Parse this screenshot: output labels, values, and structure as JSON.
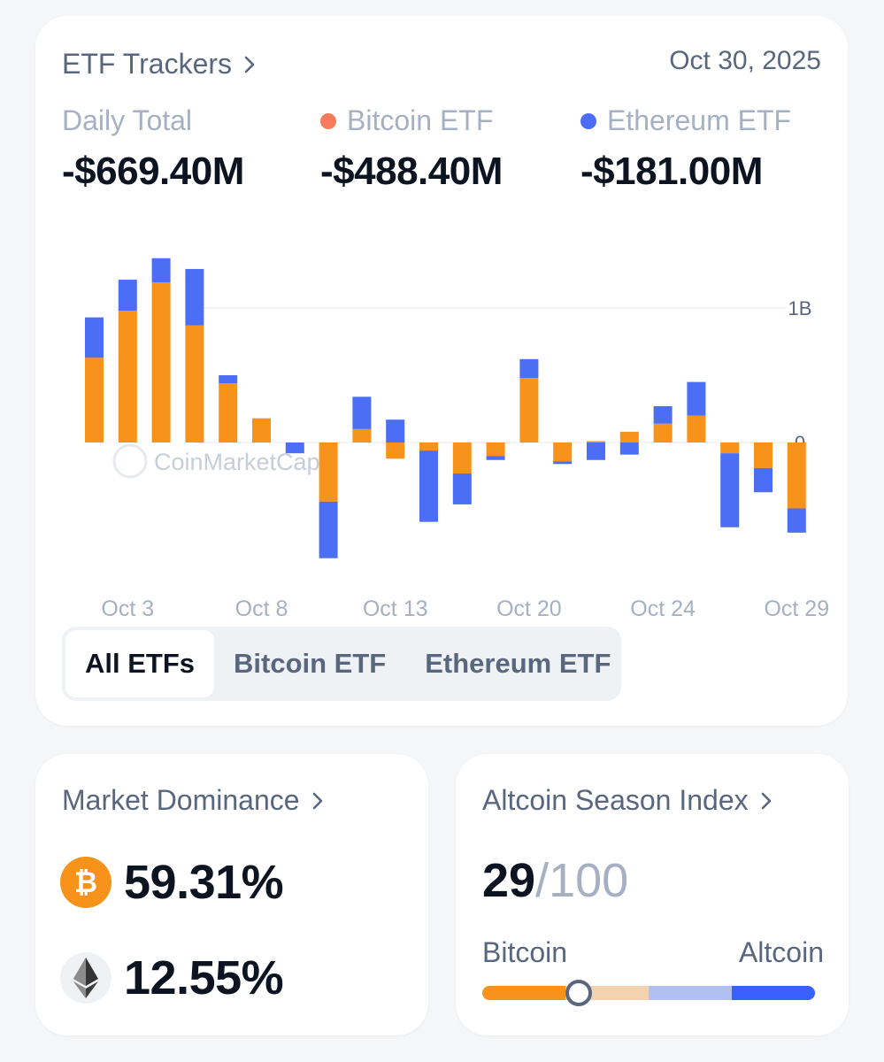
{
  "colors": {
    "bitcoin": "#f7931a",
    "ethereum": "#4c6ef5",
    "bitcoin_dot": "#f67b5c",
    "muted_text": "#a6b0c3",
    "alt_bar": [
      "#f7931a",
      "#f3d2b0",
      "#b2bff2",
      "#3861fb"
    ]
  },
  "etf": {
    "title": "ETF Trackers",
    "date": "Oct 30, 2025",
    "daily_total_label": "Daily Total",
    "daily_total_value": "-$669.40M",
    "bitcoin_label": "Bitcoin ETF",
    "bitcoin_value": "-$488.40M",
    "ethereum_label": "Ethereum ETF",
    "ethereum_value": "-$181.00M",
    "tabs": [
      "All ETFs",
      "Bitcoin ETF",
      "Ethereum ETF"
    ],
    "active_tab": "All ETFs",
    "watermark": "CoinMarketCap"
  },
  "chart_data": {
    "type": "bar",
    "stacked": true,
    "title": "",
    "xlabel": "",
    "ylabel": "",
    "ylim": [
      -1.0,
      1.4
    ],
    "yticks": [
      {
        "value": 0,
        "label": "0"
      },
      {
        "value": 1,
        "label": "1B"
      }
    ],
    "xtick_labels": [
      "Oct 3",
      "Oct 8",
      "Oct 13",
      "Oct 20",
      "Oct 24",
      "Oct 29"
    ],
    "xtick_index": [
      1,
      5,
      9,
      13,
      17,
      21
    ],
    "categories": [
      "d1",
      "d2",
      "d3",
      "d4",
      "d5",
      "d6",
      "d7",
      "d8",
      "d9",
      "d10",
      "d11",
      "d12",
      "d13",
      "d14",
      "d15",
      "d16",
      "d17",
      "d18",
      "d19",
      "d20",
      "d21",
      "d22"
    ],
    "series": [
      {
        "name": "Bitcoin ETF",
        "values": [
          0.63,
          0.98,
          1.19,
          0.87,
          0.44,
          0.18,
          0.0,
          -0.44,
          0.1,
          -0.12,
          -0.06,
          -0.23,
          -0.1,
          0.48,
          -0.14,
          0.01,
          0.08,
          0.14,
          0.2,
          -0.08,
          -0.19,
          -0.49
        ]
      },
      {
        "name": "Ethereum ETF",
        "values": [
          0.3,
          0.23,
          0.18,
          0.42,
          0.06,
          0.0,
          -0.08,
          -0.42,
          0.24,
          0.17,
          -0.53,
          -0.23,
          -0.03,
          0.14,
          -0.02,
          -0.13,
          -0.09,
          0.13,
          0.25,
          -0.55,
          -0.18,
          -0.18
        ]
      }
    ]
  },
  "dominance": {
    "title": "Market Dominance",
    "bitcoin_pct": "59.31%",
    "ethereum_pct": "12.55%"
  },
  "altseason": {
    "title": "Altcoin Season Index",
    "value": "29",
    "max": "/100",
    "left_label": "Bitcoin",
    "right_label": "Altcoin",
    "index_value": 29
  }
}
